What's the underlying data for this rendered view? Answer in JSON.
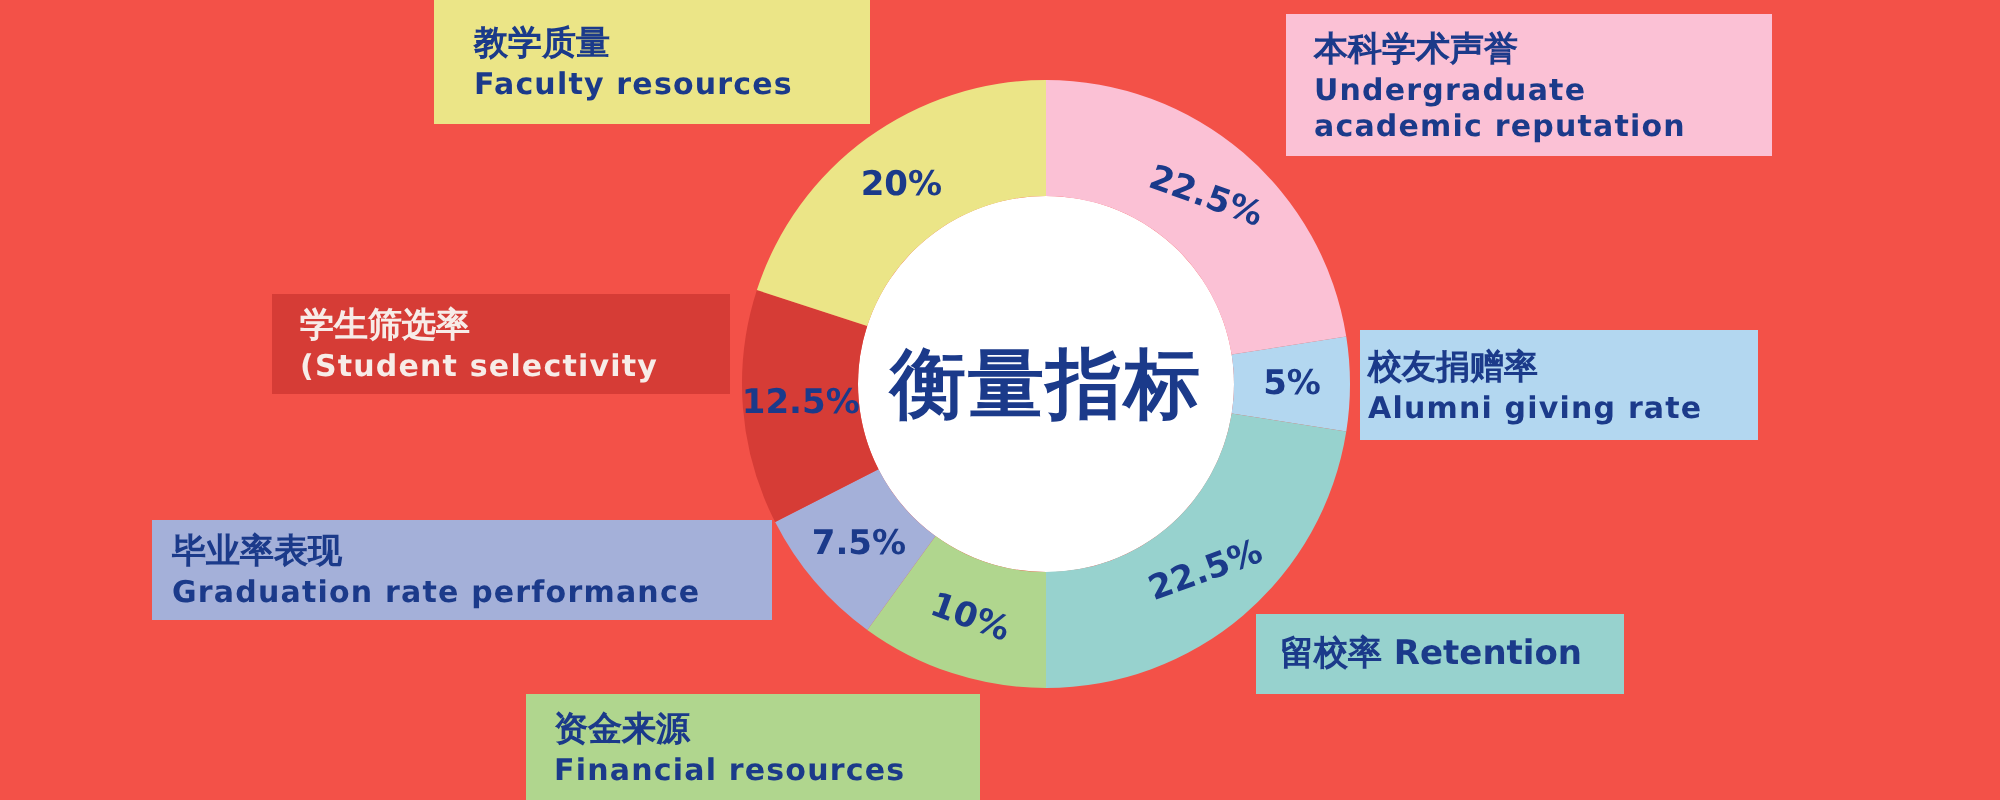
{
  "chart_data": {
    "type": "donut",
    "title": "衡量指标",
    "categories": [
      "本科学术声誉\nUndergraduate\nacademic reputation",
      "校友捐赠率\nAlumni giving rate",
      "留校率 Retention",
      "资金来源\nFinancial resources",
      "毕业率表现\nGraduation rate performance",
      "学生筛选率\n(Student selectivity",
      "教学质量\nFaculty resources"
    ],
    "values": [
      22.5,
      5,
      22.5,
      10,
      7.5,
      12.5,
      20
    ],
    "colors": [
      "#fbc1d5",
      "#b3d7f0",
      "#97d2ce",
      "#b0d68e",
      "#a4b0d9",
      "#d63c36",
      "#ebe587"
    ],
    "value_labels": [
      "22.5%",
      "5%",
      "22.5%",
      "10%",
      "7.5%",
      "12.5%",
      "20%"
    ]
  }
}
